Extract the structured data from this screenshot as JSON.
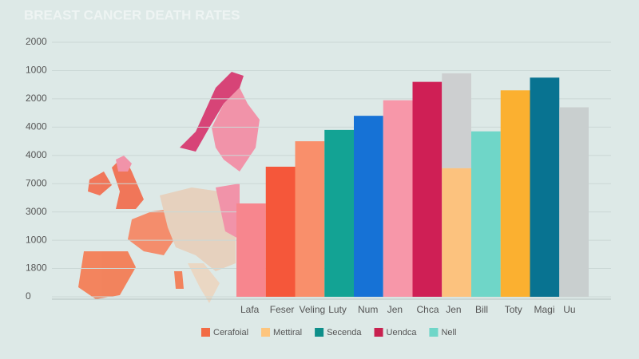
{
  "chart_data": {
    "type": "bar",
    "title": "BREAST CANCER DEATH RATES",
    "categories": [
      "Lafa",
      "Feser",
      "Veling",
      "Luty",
      "Num",
      "Jen",
      "Chca",
      "Jen",
      "Bill",
      "Toty",
      "Magi",
      "Uu"
    ],
    "series": [
      {
        "values": [
          3.3,
          4.6,
          5.5,
          5.9,
          6.4,
          6.95,
          7.6,
          4.55,
          5.85,
          7.3,
          7.75,
          6.7
        ],
        "colors": [
          "#f7868e",
          "#f5573a",
          "#f98f6b",
          "#13a394",
          "#1672d6",
          "#f797a9",
          "#cf1f55",
          "#fcc27e",
          "#6fd6c8",
          "#fbb030",
          "#087391",
          "#c9cfcf"
        ]
      },
      {
        "values": [
          null,
          null,
          null,
          null,
          null,
          null,
          null,
          3.35,
          null,
          null,
          null,
          null
        ],
        "color": "#cdcfd0"
      }
    ],
    "ylim": [
      0,
      9
    ],
    "yticks": [
      {
        "value": 0,
        "label": "0"
      },
      {
        "value": 1,
        "label": "1800"
      },
      {
        "value": 2,
        "label": "1000"
      },
      {
        "value": 3,
        "label": "3000"
      },
      {
        "value": 4,
        "label": "7000"
      },
      {
        "value": 5,
        "label": "4000"
      },
      {
        "value": 6,
        "label": "4000"
      },
      {
        "value": 7,
        "label": "2000"
      },
      {
        "value": 8,
        "label": "1000"
      },
      {
        "value": 9,
        "label": "2000"
      }
    ],
    "grid": true,
    "legend": [
      {
        "name": "Cerafoial",
        "color": "#f26b45"
      },
      {
        "name": "Mettiral",
        "color": "#fdc57e"
      },
      {
        "name": "Secenda",
        "color": "#0e8f8a"
      },
      {
        "name": "Uendca",
        "color": "#c8214f"
      },
      {
        "name": "Nell",
        "color": "#6fd6c8"
      }
    ]
  }
}
